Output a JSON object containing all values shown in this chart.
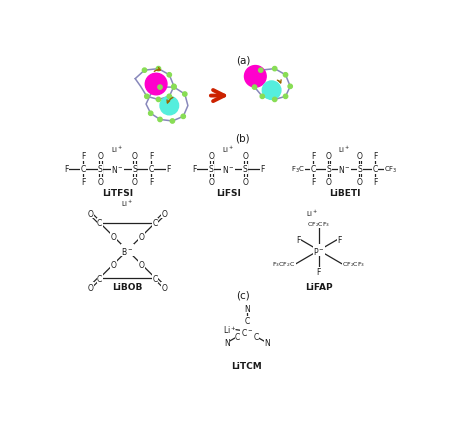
{
  "title_a": "(a)",
  "title_b": "(b)",
  "title_c": "(c)",
  "label_litfsi": "LiTFSI",
  "label_lifsi": "LiFSI",
  "label_libeti": "LiBETI",
  "label_libob": "LiBOB",
  "label_lifap": "LiFAP",
  "label_litcm": "LiTCM",
  "bg_color": "#ffffff",
  "text_color": "#1a1a1a",
  "teal_color": "#55eedd",
  "magenta_color": "#ff00cc",
  "ring_color": "#8888bb",
  "dot_color": "#88dd55",
  "arrow_color": "#996600",
  "bond_color": "#222222",
  "red_arrow_color": "#cc2200"
}
